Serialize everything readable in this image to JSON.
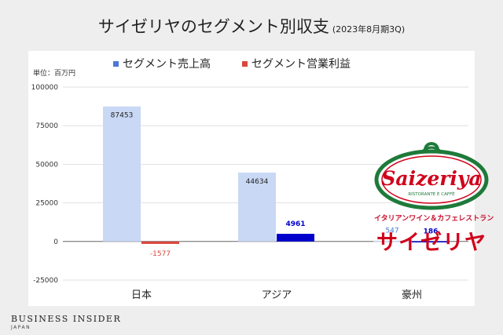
{
  "header": {
    "title": "サイゼリヤのセグメント別収支",
    "subtitle": "(2023年8月期3Q)"
  },
  "logo": {
    "wordmark": "Saizeriya",
    "tagline_small": "RISTORANTE E CAFFÈ",
    "tagline_jp": "イタリアンワイン＆カフェレストラン",
    "name_jp": "サイゼリヤ"
  },
  "brand": {
    "name": "BUSINESS INSIDER",
    "region": "JAPAN"
  },
  "colors": {
    "sales_light": "#c9d8f5",
    "sales_legend": "#4a78d4",
    "profit_red": "#d9473d",
    "profit_blue": "#0000cc",
    "logo_red": "#d0021b",
    "logo_green": "#1e7a3a"
  },
  "chart_data": {
    "type": "bar",
    "unit_label": "単位：百万円",
    "categories": [
      "日本",
      "アジア",
      "豪州"
    ],
    "series": [
      {
        "name": "セグメント売上高",
        "values": [
          87453,
          44634,
          547
        ]
      },
      {
        "name": "セグメント営業利益",
        "values": [
          -1577,
          4961,
          186
        ]
      }
    ],
    "ylim": [
      -25000,
      100000
    ],
    "yticks": [
      -25000,
      0,
      25000,
      50000,
      75000,
      100000
    ],
    "grid": true,
    "legend": "top"
  }
}
